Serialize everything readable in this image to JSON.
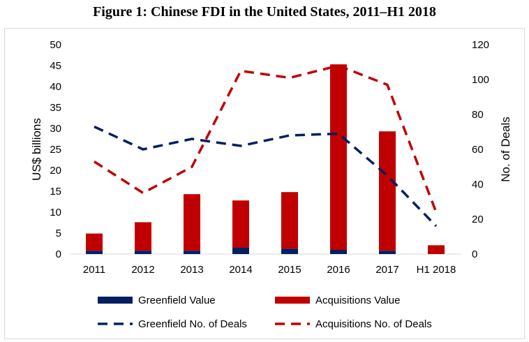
{
  "title": "Figure 1: Chinese FDI in the United States, 2011–H1 2018",
  "chart_data": {
    "type": "bar",
    "categories": [
      "2011",
      "2012",
      "2013",
      "2014",
      "2015",
      "2016",
      "2017",
      "H1 2018"
    ],
    "ylabel": "US$ billions",
    "y2label": "No. of Deals",
    "ylim": [
      0,
      50
    ],
    "y2lim": [
      0,
      120
    ],
    "yticks": [
      0,
      5,
      10,
      15,
      20,
      25,
      30,
      35,
      40,
      45,
      50
    ],
    "y2ticks": [
      0,
      20,
      40,
      60,
      80,
      100,
      120
    ],
    "stacked_bars": [
      {
        "name": "Greenfield Value",
        "axis": "left",
        "color": "#002060",
        "values": [
          0.8,
          0.8,
          0.8,
          1.5,
          1.3,
          1.0,
          0.8,
          0
        ]
      },
      {
        "name": "Acquisitions Value",
        "axis": "left",
        "color": "#c00000",
        "values": [
          4.1,
          6.8,
          13.5,
          11.3,
          13.5,
          44.3,
          28.5,
          2.1
        ]
      }
    ],
    "lines": [
      {
        "name": "Greenfield No. of Deals",
        "axis": "right",
        "color": "#002060",
        "dashed": true,
        "values": [
          73,
          60,
          66,
          62,
          68,
          69,
          45,
          16
        ]
      },
      {
        "name": "Acquisitions No. of Deals",
        "axis": "right",
        "color": "#c00000",
        "dashed": true,
        "values": [
          53,
          35,
          50,
          105,
          101,
          108,
          97,
          24
        ]
      }
    ],
    "legend_position": "bottom",
    "grid": false
  }
}
